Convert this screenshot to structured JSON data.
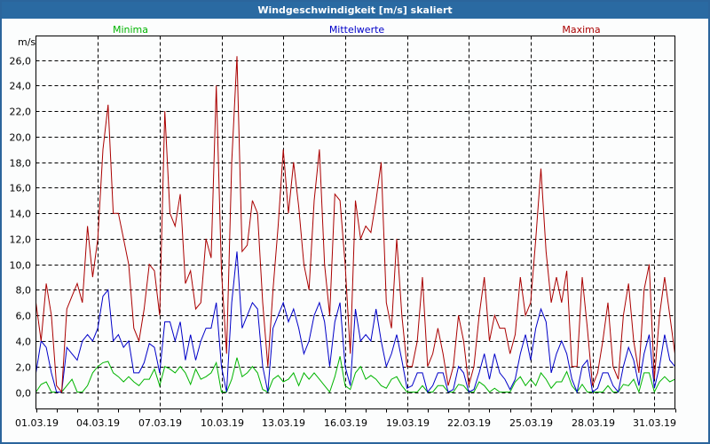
{
  "window": {
    "title": "Windgeschwindigkeit [m/s] skaliert",
    "title_bar_color": "#2a6aa2",
    "background": "#fcfdfd"
  },
  "legend": {
    "minima": {
      "label": "Minima",
      "color": "#00b400"
    },
    "mean": {
      "label": "Mittelwerte",
      "color": "#0000c8"
    },
    "maxima": {
      "label": "Maxima",
      "color": "#aa0000"
    }
  },
  "chart_data": {
    "type": "line",
    "title": "Windgeschwindigkeit [m/s] skaliert",
    "xlabel": "",
    "ylabel": "m/s",
    "ylim": [
      -1.3,
      27.0
    ],
    "yticks": [
      0,
      2,
      4,
      6,
      8,
      10,
      12,
      14,
      16,
      18,
      20,
      22,
      24,
      26
    ],
    "ytick_labels": [
      "0,0",
      "2,0",
      "4,0",
      "6,0",
      "8,0",
      "10,0",
      "12,0",
      "14,0",
      "16,0",
      "18,0",
      "20,0",
      "22,0",
      "24,0",
      "26,0"
    ],
    "x_unit": "day of March 2019",
    "xlim": [
      1.0,
      32.0
    ],
    "x_step": 0.25,
    "x_start": 1.0,
    "xticks": [
      1,
      4,
      7,
      10,
      13,
      16,
      19,
      22,
      25,
      28,
      31
    ],
    "xtick_labels": [
      "01.03.19",
      "04.03.19",
      "07.03.19",
      "10.03.19",
      "13.03.19",
      "16.03.19",
      "19.03.19",
      "22.03.19",
      "25.03.19",
      "28.03.19",
      "31.03.19"
    ],
    "minor_xtick_every": 1,
    "grid": true,
    "legend_position": "top",
    "series": [
      {
        "name": "Maxima",
        "color": "#aa0000",
        "values": [
          7,
          4,
          8.5,
          6,
          0.5,
          0,
          6.5,
          7.5,
          8.5,
          7,
          13,
          9,
          12,
          19,
          22.5,
          14,
          14,
          12,
          10,
          5,
          4,
          6.5,
          10,
          9.5,
          6,
          22,
          14,
          13,
          15.5,
          8.5,
          9.5,
          6.5,
          7,
          12,
          10.5,
          24,
          9.5,
          3,
          18,
          26.3,
          11,
          11.5,
          15,
          14,
          7,
          2,
          8,
          13,
          19,
          14,
          18,
          14.5,
          10,
          8,
          15,
          19,
          10,
          6,
          15.5,
          15,
          10,
          3,
          15,
          12,
          13,
          12.5,
          15,
          18,
          7,
          5,
          12,
          6,
          2,
          2,
          4,
          9,
          2,
          3,
          5,
          3,
          0.5,
          2,
          6,
          4,
          0.5,
          2,
          6,
          9,
          4,
          6,
          5,
          5,
          3,
          4.5,
          9,
          6,
          7,
          12,
          17.5,
          11,
          7,
          9,
          7,
          9.5,
          2,
          2,
          9,
          5,
          0.5,
          1.5,
          4,
          7,
          2,
          1,
          6,
          8.5,
          4,
          1.5,
          8,
          10,
          1,
          6,
          9,
          6,
          3
        ]
      },
      {
        "name": "Mittelwerte",
        "color": "#0000c8",
        "values": [
          1.5,
          4,
          3.5,
          1.5,
          0,
          0,
          3.5,
          3,
          2.5,
          4,
          4.5,
          4,
          5,
          7.5,
          8,
          4,
          4.5,
          3.5,
          4,
          1.5,
          1.5,
          2.3,
          3.8,
          3.5,
          1.5,
          5.5,
          5.5,
          4,
          5.5,
          2.5,
          4.5,
          2.5,
          4,
          5,
          5,
          7,
          2,
          0,
          7,
          11,
          5,
          6,
          7,
          6.5,
          2,
          0,
          5,
          6,
          7,
          5.5,
          6.5,
          5,
          3,
          4,
          6,
          7,
          5.5,
          2,
          5.5,
          7,
          2,
          0.5,
          6.5,
          4,
          4.5,
          4,
          6.5,
          4,
          2,
          3,
          4.5,
          2.5,
          0.3,
          0.5,
          1.5,
          1.5,
          0,
          0.5,
          1.5,
          1.5,
          0,
          0.2,
          2,
          1.5,
          0,
          0.2,
          1.5,
          3,
          1,
          3,
          1.5,
          1,
          0.2,
          1,
          3,
          4.5,
          2.5,
          5,
          6.5,
          5.5,
          1.5,
          3,
          4,
          3,
          1,
          0,
          2,
          2.5,
          0,
          0.3,
          1.5,
          1.5,
          0.5,
          0,
          2,
          3.5,
          2.5,
          0.5,
          3,
          4.5,
          0.3,
          2,
          4.5,
          2.5,
          2
        ]
      },
      {
        "name": "Minima",
        "color": "#00b400",
        "values": [
          0,
          0.6,
          0.8,
          0,
          0,
          0,
          0.5,
          1,
          0,
          0,
          0.5,
          1.5,
          2,
          2.3,
          2.4,
          1.5,
          1.2,
          0.8,
          1.2,
          0.8,
          0.5,
          1,
          1,
          1.8,
          0.5,
          2,
          1.8,
          1.5,
          2,
          1.5,
          0.6,
          1.8,
          1,
          1.2,
          1.5,
          2.3,
          0,
          0,
          1,
          2.7,
          1.2,
          1.5,
          2,
          1.5,
          0.2,
          0,
          1,
          1.3,
          0.8,
          1,
          1.5,
          0.5,
          1.5,
          1,
          1.5,
          1,
          0.5,
          0,
          1.2,
          2.8,
          0.5,
          0.2,
          1.5,
          2,
          1,
          1.3,
          1,
          0.5,
          0.3,
          1,
          1.2,
          0.5,
          0,
          0,
          0,
          0.5,
          0,
          0,
          0.5,
          0.5,
          0,
          0,
          0.6,
          0.5,
          0,
          0,
          0.8,
          0.5,
          0,
          0.3,
          0,
          0,
          0,
          0.8,
          1.2,
          0.5,
          1,
          0.5,
          1.5,
          1,
          0.3,
          0.8,
          0.8,
          1.6,
          0.5,
          0,
          0.6,
          0,
          0,
          0,
          0,
          0.5,
          0,
          0,
          0.6,
          0.5,
          1,
          0,
          1.5,
          1.5,
          0,
          0.8,
          1.2,
          0.8,
          1
        ]
      }
    ]
  }
}
